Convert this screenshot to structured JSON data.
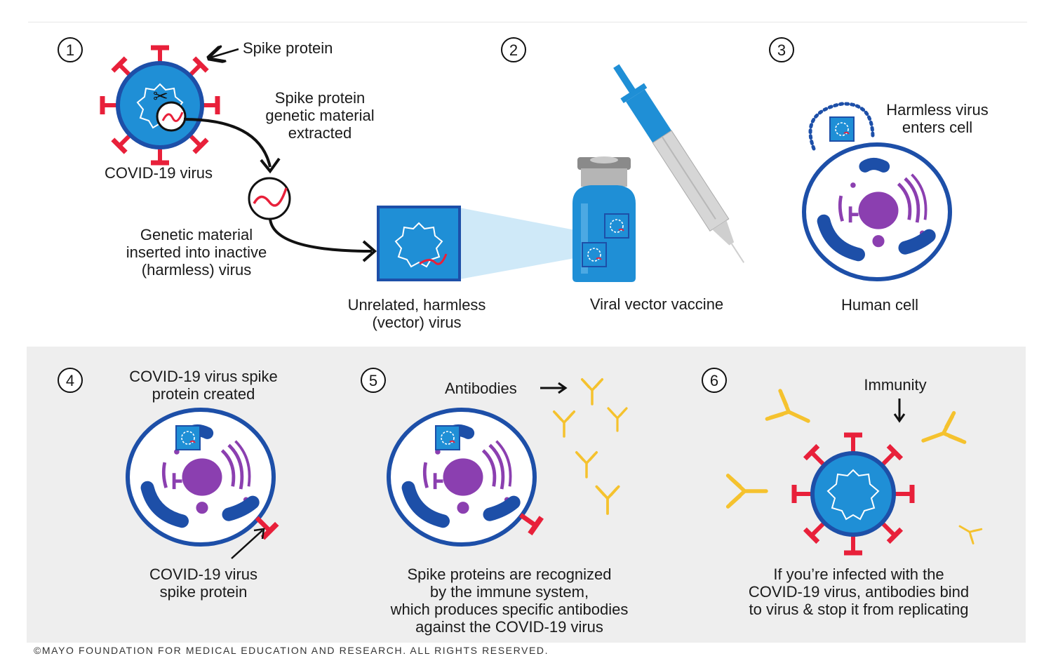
{
  "panel1": {
    "number": "1",
    "spike_protein_label": "Spike protein",
    "extracted_label": [
      "Spike protein",
      "genetic material",
      "extracted"
    ],
    "virus_label": "COVID-19 virus",
    "inserted_label": [
      "Genetic material",
      "inserted into inactive",
      "(harmless) virus"
    ],
    "vector_label": [
      "Unrelated, harmless",
      "(vector) virus"
    ]
  },
  "panel2": {
    "number": "2",
    "vaccine_label": "Viral vector vaccine"
  },
  "panel3": {
    "number": "3",
    "enters_label": [
      "Harmless virus",
      "enters cell"
    ],
    "cell_label": "Human cell"
  },
  "panel4": {
    "number": "4",
    "created_label": [
      "COVID-19 virus spike",
      "protein created"
    ],
    "spike_label": [
      "COVID-19 virus",
      "spike protein"
    ]
  },
  "panel5": {
    "number": "5",
    "antibodies_label": "Antibodies",
    "recognized_label": [
      "Spike proteins are recognized",
      "by the immune system,",
      "which produces specific antibodies",
      "against the COVID-19 virus"
    ]
  },
  "panel6": {
    "number": "6",
    "immunity_label": "Immunity",
    "infected_label": [
      "If you’re infected with the",
      "COVID-19 virus, antibodies bind",
      "to virus & stop it from replicating"
    ]
  },
  "footer": "©MAYO FOUNDATION FOR MEDICAL EDUCATION AND RESEARCH. ALL RIGHTS RESERVED.",
  "colors": {
    "virus_blue": "#1f8fd6",
    "outline_blue": "#1d4fa8",
    "spike_red": "#e8203a",
    "cell_purple": "#8b3fb0",
    "antibody_yellow": "#f5c22e",
    "panel_gray": "#eeeeee"
  }
}
